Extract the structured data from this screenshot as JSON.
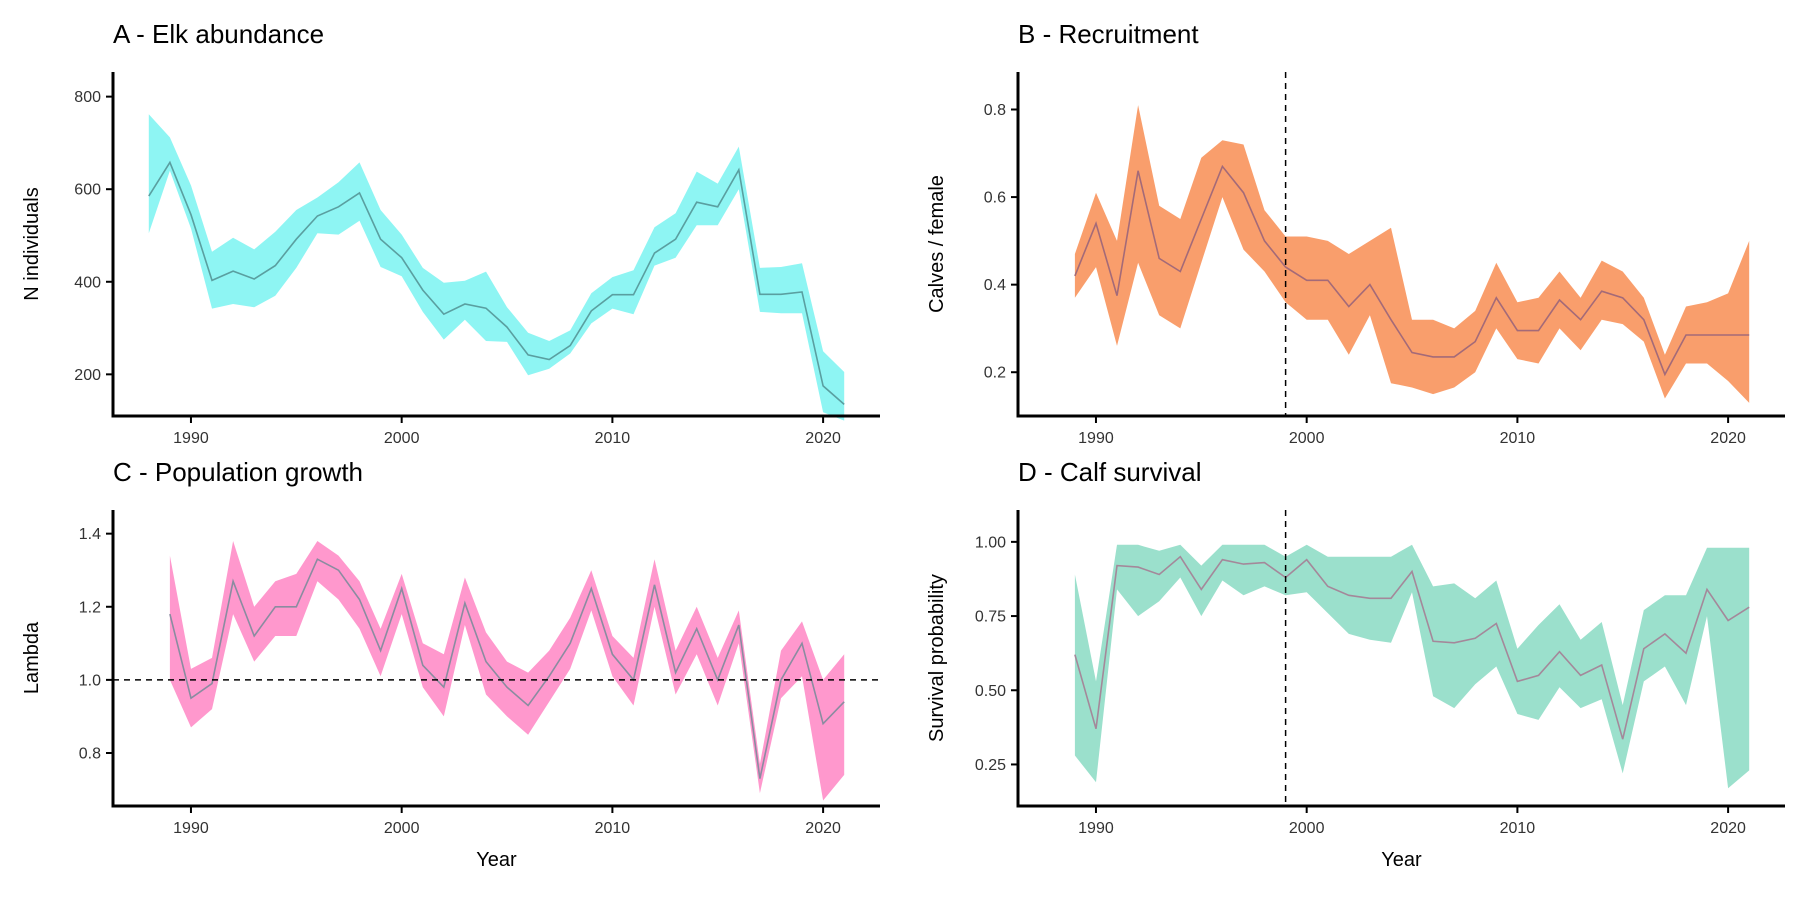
{
  "chart_data": [
    {
      "type": "area",
      "title": "A - Elk abundance",
      "xlabel": "",
      "ylabel": "N individuals",
      "xlim": [
        1986.3,
        2022.7
      ],
      "ylim": [
        110,
        810
      ],
      "xticks": [
        1990,
        2000,
        2010,
        2020
      ],
      "yticks": [
        200,
        400,
        600,
        800
      ],
      "hline": null,
      "vline": null,
      "color": "#8ef5f3",
      "line_color": "#5a9fa0",
      "x": [
        1988,
        1989,
        1990,
        1991,
        1992,
        1993,
        1994,
        1995,
        1996,
        1997,
        1998,
        1999,
        2000,
        2001,
        2002,
        2003,
        2004,
        2005,
        2006,
        2007,
        2008,
        2009,
        2010,
        2011,
        2012,
        2013,
        2014,
        2015,
        2016,
        2017,
        2018,
        2019,
        2020,
        2021
      ],
      "mean": [
        585,
        658,
        545,
        403,
        423,
        406,
        435,
        492,
        542,
        562,
        592,
        492,
        452,
        382,
        330,
        352,
        343,
        302,
        242,
        232,
        262,
        337,
        372,
        372,
        462,
        492,
        572,
        562,
        642,
        373,
        373,
        378,
        175,
        135
      ],
      "lower": [
        505,
        640,
        515,
        342,
        352,
        345,
        370,
        430,
        505,
        502,
        532,
        432,
        412,
        335,
        275,
        318,
        272,
        270,
        198,
        212,
        245,
        310,
        342,
        330,
        435,
        452,
        522,
        522,
        600,
        335,
        332,
        332,
        118,
        100
      ],
      "upper": [
        762,
        712,
        608,
        465,
        495,
        470,
        508,
        555,
        582,
        615,
        658,
        555,
        502,
        430,
        398,
        402,
        422,
        345,
        290,
        272,
        295,
        375,
        410,
        425,
        518,
        548,
        638,
        612,
        692,
        430,
        432,
        440,
        250,
        205
      ]
    },
    {
      "type": "area",
      "title": "B - Recruitment",
      "xlabel": "",
      "ylabel": "Calves / female",
      "xlim": [
        1986.3,
        2022.7
      ],
      "ylim": [
        0.1,
        0.84
      ],
      "xticks": [
        1990,
        2000,
        2010,
        2020
      ],
      "yticks": [
        0.2,
        0.4,
        0.6,
        0.8
      ],
      "hline": null,
      "vline": 1999,
      "color": "#f99e6c",
      "line_color": "#a46a78",
      "x": [
        1989,
        1990,
        1991,
        1992,
        1993,
        1994,
        1995,
        1996,
        1997,
        1998,
        1999,
        2000,
        2001,
        2002,
        2003,
        2004,
        2005,
        2006,
        2007,
        2008,
        2009,
        2010,
        2011,
        2012,
        2013,
        2014,
        2015,
        2016,
        2017,
        2018,
        2019,
        2020,
        2021
      ],
      "mean": [
        0.42,
        0.54,
        0.375,
        0.66,
        0.46,
        0.43,
        0.55,
        0.67,
        0.61,
        0.5,
        0.44,
        0.41,
        0.41,
        0.35,
        0.4,
        0.32,
        0.245,
        0.235,
        0.235,
        0.27,
        0.37,
        0.295,
        0.295,
        0.365,
        0.32,
        0.385,
        0.37,
        0.32,
        0.195,
        0.285,
        0.285,
        0.285,
        0.285
      ],
      "lower": [
        0.37,
        0.44,
        0.26,
        0.45,
        0.33,
        0.3,
        0.45,
        0.6,
        0.48,
        0.43,
        0.36,
        0.32,
        0.32,
        0.24,
        0.33,
        0.175,
        0.165,
        0.15,
        0.165,
        0.2,
        0.3,
        0.23,
        0.22,
        0.3,
        0.25,
        0.32,
        0.31,
        0.27,
        0.14,
        0.22,
        0.22,
        0.18,
        0.13
      ],
      "upper": [
        0.47,
        0.61,
        0.5,
        0.81,
        0.58,
        0.55,
        0.69,
        0.73,
        0.72,
        0.57,
        0.51,
        0.51,
        0.5,
        0.47,
        0.5,
        0.53,
        0.32,
        0.32,
        0.3,
        0.34,
        0.45,
        0.36,
        0.37,
        0.43,
        0.37,
        0.455,
        0.43,
        0.37,
        0.24,
        0.35,
        0.36,
        0.38,
        0.5
      ]
    },
    {
      "type": "area",
      "title": "C - Population growth",
      "xlabel": "Year",
      "ylabel": "Lambda",
      "xlim": [
        1986.3,
        2022.7
      ],
      "ylim": [
        0.655,
        1.41
      ],
      "xticks": [
        1990,
        2000,
        2010,
        2020
      ],
      "yticks": [
        0.8,
        1.0,
        1.2,
        1.4
      ],
      "hline": 1.0,
      "vline": null,
      "color": "#ff98cd",
      "line_color": "#8a8ca0",
      "x": [
        1989,
        1990,
        1991,
        1992,
        1993,
        1994,
        1995,
        1996,
        1997,
        1998,
        1999,
        2000,
        2001,
        2002,
        2003,
        2004,
        2005,
        2006,
        2007,
        2008,
        2009,
        2010,
        2011,
        2012,
        2013,
        2014,
        2015,
        2016,
        2017,
        2018,
        2019,
        2020,
        2021
      ],
      "mean": [
        1.18,
        0.95,
        0.99,
        1.27,
        1.12,
        1.2,
        1.2,
        1.33,
        1.3,
        1.22,
        1.08,
        1.25,
        1.04,
        0.98,
        1.21,
        1.05,
        0.98,
        0.93,
        1.01,
        1.1,
        1.25,
        1.07,
        1.0,
        1.26,
        1.02,
        1.14,
        1.0,
        1.15,
        0.73,
        1.0,
        1.1,
        0.88,
        0.94
      ],
      "lower": [
        1.0,
        0.87,
        0.92,
        1.18,
        1.05,
        1.12,
        1.12,
        1.27,
        1.22,
        1.14,
        1.01,
        1.18,
        0.98,
        0.9,
        1.15,
        0.96,
        0.9,
        0.85,
        0.94,
        1.03,
        1.19,
        1.01,
        0.93,
        1.2,
        0.96,
        1.07,
        0.93,
        1.1,
        0.69,
        0.95,
        1.01,
        0.67,
        0.74
      ],
      "upper": [
        1.34,
        1.03,
        1.06,
        1.38,
        1.2,
        1.27,
        1.29,
        1.38,
        1.34,
        1.27,
        1.14,
        1.29,
        1.1,
        1.07,
        1.28,
        1.13,
        1.05,
        1.02,
        1.08,
        1.17,
        1.3,
        1.12,
        1.06,
        1.33,
        1.08,
        1.2,
        1.06,
        1.19,
        0.77,
        1.08,
        1.16,
        1.0,
        1.07
      ]
    },
    {
      "type": "area",
      "title": "D - Calf survival",
      "xlabel": "Year",
      "ylabel": "Survival probability",
      "xlim": [
        1986.3,
        2022.7
      ],
      "ylim": [
        0.11,
        1.04
      ],
      "xticks": [
        1990,
        2000,
        2010,
        2020
      ],
      "yticks": [
        0.25,
        0.5,
        0.75,
        1.0
      ],
      "ytick_labels": [
        "0.25",
        "0.50",
        "0.75",
        "1.00"
      ],
      "hline": null,
      "vline": 1999,
      "color": "#9be0cc",
      "line_color": "#a4889a",
      "x": [
        1989,
        1990,
        1991,
        1992,
        1993,
        1994,
        1995,
        1996,
        1997,
        1998,
        1999,
        2000,
        2001,
        2002,
        2003,
        2004,
        2005,
        2006,
        2007,
        2008,
        2009,
        2010,
        2011,
        2012,
        2013,
        2014,
        2015,
        2016,
        2017,
        2018,
        2019,
        2020,
        2021
      ],
      "mean": [
        0.62,
        0.37,
        0.92,
        0.915,
        0.89,
        0.95,
        0.84,
        0.94,
        0.925,
        0.93,
        0.88,
        0.94,
        0.85,
        0.82,
        0.81,
        0.81,
        0.9,
        0.665,
        0.66,
        0.675,
        0.725,
        0.53,
        0.55,
        0.63,
        0.55,
        0.585,
        0.335,
        0.64,
        0.69,
        0.625,
        0.84,
        0.735,
        0.78
      ],
      "lower": [
        0.28,
        0.19,
        0.84,
        0.75,
        0.8,
        0.88,
        0.75,
        0.87,
        0.82,
        0.85,
        0.82,
        0.83,
        0.76,
        0.69,
        0.67,
        0.66,
        0.83,
        0.48,
        0.44,
        0.52,
        0.58,
        0.42,
        0.4,
        0.51,
        0.44,
        0.47,
        0.22,
        0.53,
        0.58,
        0.45,
        0.75,
        0.17,
        0.23
      ],
      "upper": [
        0.89,
        0.53,
        0.99,
        0.99,
        0.97,
        0.99,
        0.92,
        0.99,
        0.99,
        0.99,
        0.95,
        0.99,
        0.95,
        0.95,
        0.95,
        0.95,
        0.99,
        0.85,
        0.86,
        0.81,
        0.87,
        0.64,
        0.72,
        0.79,
        0.67,
        0.73,
        0.45,
        0.77,
        0.82,
        0.82,
        0.98,
        0.98,
        0.98
      ]
    }
  ]
}
